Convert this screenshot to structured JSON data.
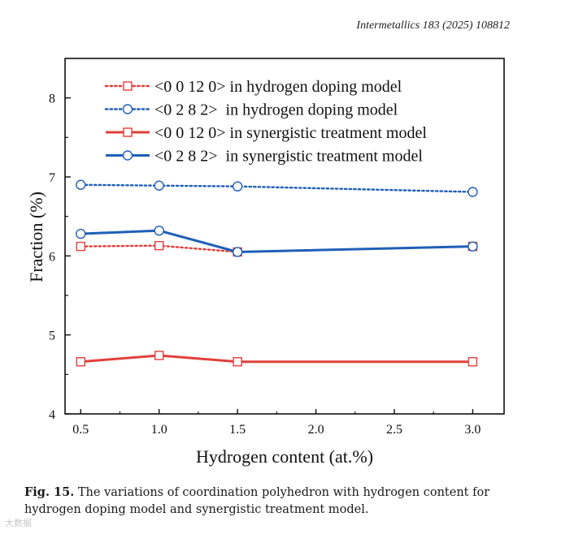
{
  "header": {
    "journal": "Intermetallics 183 (2025) 108812"
  },
  "colors": {
    "red": "#e0403c",
    "blue": "#1f5fb8",
    "axis": "#111111"
  },
  "chart_data": {
    "type": "line",
    "xlabel": "Hydrogen content (at.%)",
    "ylabel": "Fraction (%)",
    "xlim": [
      0.4,
      3.2
    ],
    "ylim": [
      4,
      8.5
    ],
    "xticks": [
      0.5,
      1.0,
      1.5,
      2.0,
      2.5,
      3.0
    ],
    "xtick_labels": [
      "0.5",
      "1.0",
      "1.5",
      "2.0",
      "2.5",
      "3.0"
    ],
    "yticks": [
      4,
      5,
      6,
      7,
      8
    ],
    "ytick_labels": [
      "4",
      "5",
      "6",
      "7",
      "8"
    ],
    "legend_position": "top",
    "series": [
      {
        "name": "<0 0 12 0> in hydrogen doping model",
        "color": "red",
        "dash": "dotted",
        "marker": "square",
        "x": [
          0.5,
          1.0,
          1.5,
          3.0
        ],
        "values": [
          6.12,
          6.13,
          6.05,
          6.12
        ]
      },
      {
        "name": "<0 2 8 2>  in hydrogen doping model",
        "color": "blue",
        "dash": "dotted",
        "marker": "circle",
        "x": [
          0.5,
          1.0,
          1.5,
          3.0
        ],
        "values": [
          6.9,
          6.89,
          6.88,
          6.81
        ]
      },
      {
        "name": "<0 0 12 0> in synergistic treatment model",
        "color": "red",
        "dash": "solid",
        "marker": "square",
        "x": [
          0.5,
          1.0,
          1.5,
          3.0
        ],
        "values": [
          4.66,
          4.74,
          4.66,
          4.66
        ]
      },
      {
        "name": "<0 2 8 2>  in synergistic treatment model",
        "color": "blue",
        "dash": "solid",
        "marker": "circle",
        "x": [
          0.5,
          1.0,
          1.5,
          3.0
        ],
        "values": [
          6.28,
          6.32,
          6.05,
          6.12
        ]
      }
    ]
  },
  "caption": {
    "label": "Fig. 15.",
    "text": " The variations of coordination polyhedron with hydrogen content for hydrogen doping model and synergistic treatment model."
  },
  "watermark": "大数据"
}
